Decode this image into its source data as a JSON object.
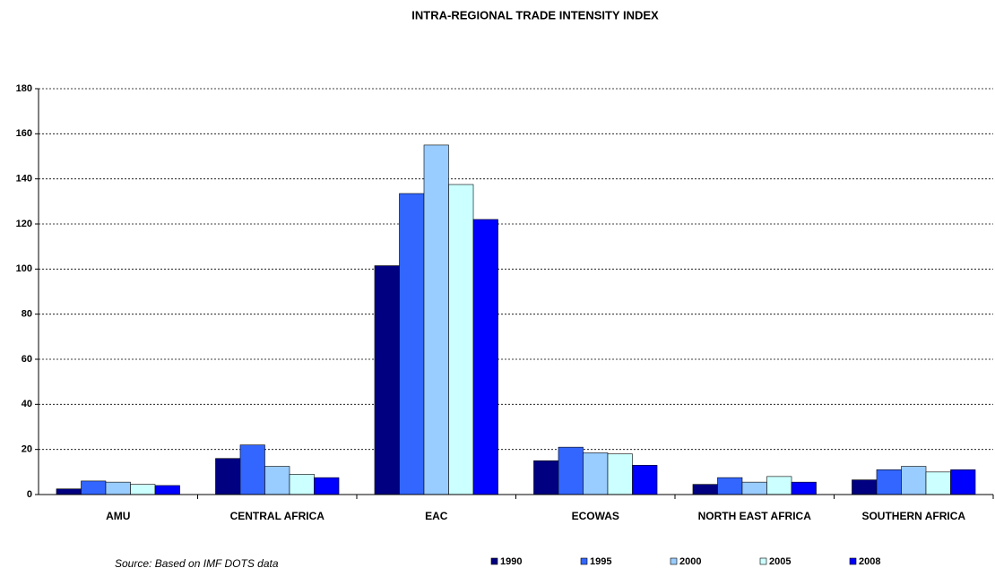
{
  "chart_data": {
    "type": "bar",
    "title": "INTRA-REGIONAL TRADE INTENSITY INDEX",
    "categories": [
      "AMU",
      "CENTRAL  AFRICA",
      "EAC",
      "ECOWAS",
      "NORTH EAST AFRICA",
      "SOUTHERN  AFRICA"
    ],
    "series": [
      {
        "name": "1990",
        "color": "#000080",
        "values": [
          2.5,
          16,
          101.5,
          15,
          4.5,
          6.5
        ]
      },
      {
        "name": "1995",
        "color": "#3366ff",
        "values": [
          6,
          22,
          133.5,
          21,
          7.5,
          11
        ]
      },
      {
        "name": "2000",
        "color": "#99ccff",
        "values": [
          5.5,
          12.5,
          155,
          18.5,
          5.5,
          12.5
        ]
      },
      {
        "name": "2005",
        "color": "#ccffff",
        "values": [
          4.5,
          9,
          137.5,
          18,
          8,
          10
        ]
      },
      {
        "name": "2008",
        "color": "#0000ff",
        "values": [
          4,
          7.5,
          122,
          13,
          5.5,
          11
        ]
      }
    ],
    "ylim": [
      0,
      180
    ],
    "yticks": [
      0,
      20,
      40,
      60,
      80,
      100,
      120,
      140,
      160,
      180
    ],
    "grid": true,
    "legend": "bottom",
    "source": "Source: Based on IMF DOTS data"
  }
}
